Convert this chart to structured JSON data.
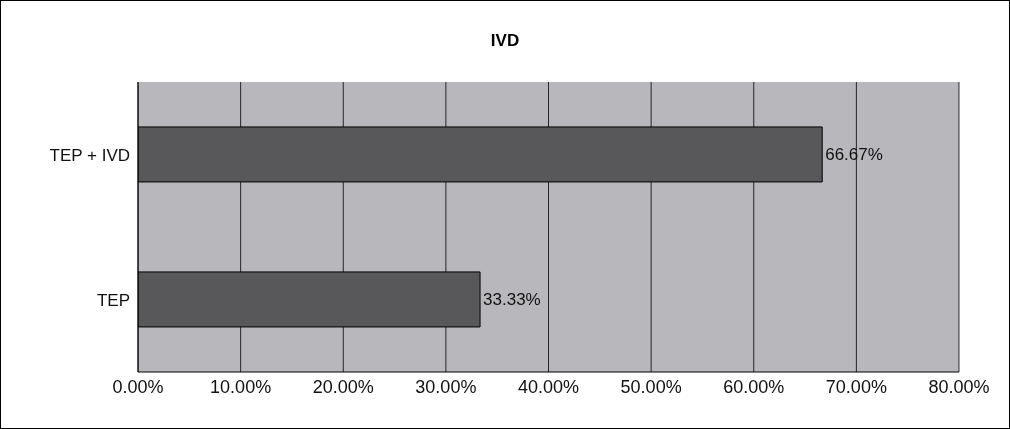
{
  "chart_data": {
    "type": "bar",
    "orientation": "horizontal",
    "title": "IVD",
    "categories": [
      "TEP + IVD",
      "TEP"
    ],
    "values": [
      66.67,
      33.33
    ],
    "color": "#58585a",
    "value_labels": [
      "66.67%",
      "33.33%"
    ],
    "xlim": [
      0,
      80
    ],
    "xticks": [
      {
        "value": 0,
        "label": "0.00%"
      },
      {
        "value": 10,
        "label": "10.00%"
      },
      {
        "value": 20,
        "label": "20.00%"
      },
      {
        "value": 30,
        "label": "30.00%"
      },
      {
        "value": 40,
        "label": "40.00%"
      },
      {
        "value": 50,
        "label": "50.00%"
      },
      {
        "value": 60,
        "label": "60.00%"
      },
      {
        "value": 70,
        "label": "70.00%"
      },
      {
        "value": 80,
        "label": "80.00%"
      }
    ],
    "grid": "x"
  }
}
